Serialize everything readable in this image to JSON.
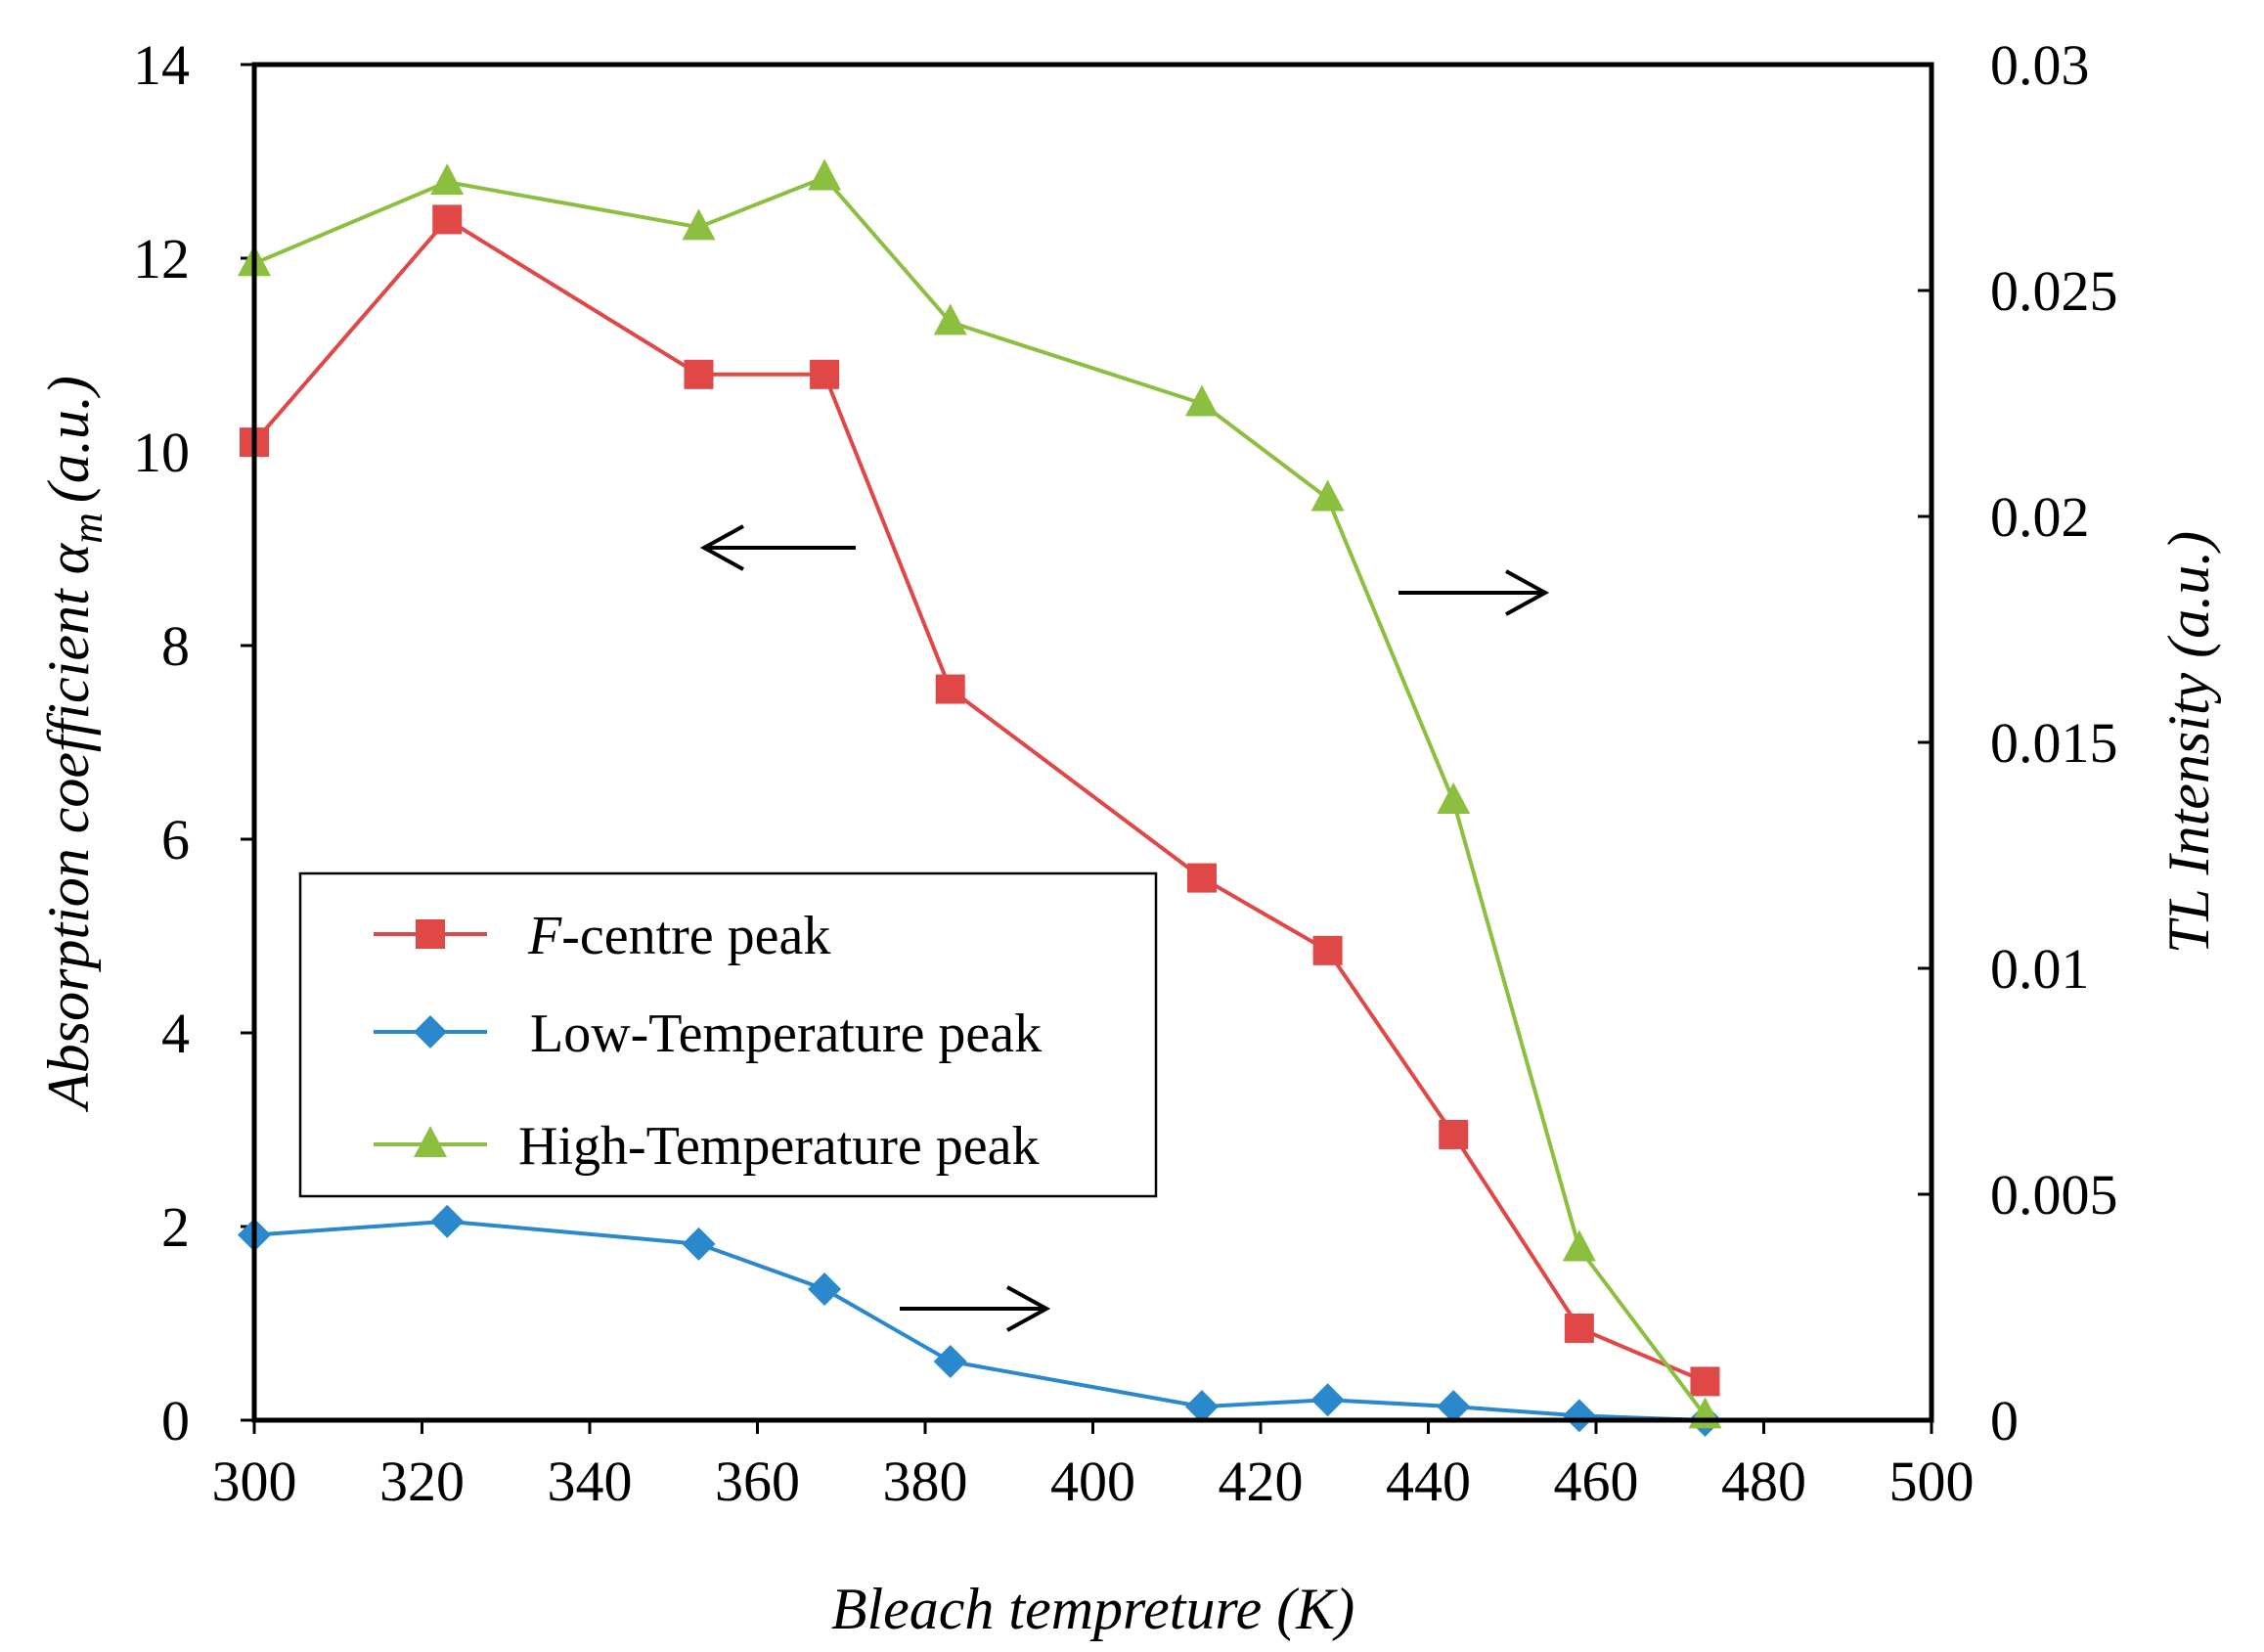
{
  "chart_data": {
    "type": "line",
    "title": "",
    "xlabel": "Bleach tempreture (K)",
    "ylabel": "Absorption coefficient α",
    "ylabel_subscript": "m",
    "ylabel_unit": "(a.u.)",
    "y2label": "TL Intensity (a.u.)",
    "xlim": [
      300,
      500
    ],
    "ylim": [
      0,
      14
    ],
    "y2lim": [
      0,
      0.03
    ],
    "xticks": [
      "300",
      "320",
      "340",
      "360",
      "380",
      "400",
      "420",
      "440",
      "460",
      "480",
      "500"
    ],
    "yticks": [
      "0",
      "2",
      "4",
      "6",
      "8",
      "10",
      "12",
      "14"
    ],
    "y2ticks": [
      "0",
      "0.005",
      "0.01",
      "0.015",
      "0.02",
      "0.025",
      "0.03"
    ],
    "series": [
      {
        "name": "F-centre peak",
        "name_italic": "F",
        "name_rest": "-centre peak",
        "axis": "left",
        "marker": "square",
        "color": "#e04848",
        "x": [
          300,
          323,
          353,
          368,
          383,
          413,
          428,
          443,
          458,
          473
        ],
        "values": [
          10.1,
          12.4,
          10.8,
          10.8,
          7.55,
          5.6,
          4.85,
          2.95,
          0.95,
          0.4
        ]
      },
      {
        "name": "Low-Temperature peak",
        "axis": "right",
        "marker": "diamond",
        "color": "#2a88cc",
        "x": [
          300,
          323,
          353,
          368,
          383,
          413,
          428,
          443,
          458,
          473
        ],
        "values": [
          0.0041,
          0.0044,
          0.0039,
          0.0029,
          0.0013,
          0.0003,
          0.00045,
          0.0003,
          0.0001,
          0.0
        ]
      },
      {
        "name": "High-Temperature peak",
        "axis": "right",
        "marker": "triangle",
        "color": "#8cbf40",
        "x": [
          300,
          323,
          353,
          368,
          383,
          413,
          428,
          443,
          458,
          473
        ],
        "values": [
          0.0256,
          0.0274,
          0.0264,
          0.0275,
          0.0243,
          0.0225,
          0.0204,
          0.0137,
          0.0038,
          0.0001
        ]
      }
    ],
    "legend_position": "lower-left",
    "annotations": [
      {
        "type": "arrow",
        "direction": "left",
        "refers_to": "F-centre peak"
      },
      {
        "type": "arrow",
        "direction": "right",
        "refers_to": "High-Temperature peak"
      },
      {
        "type": "arrow",
        "direction": "right",
        "refers_to": "Low-Temperature peak"
      }
    ]
  }
}
